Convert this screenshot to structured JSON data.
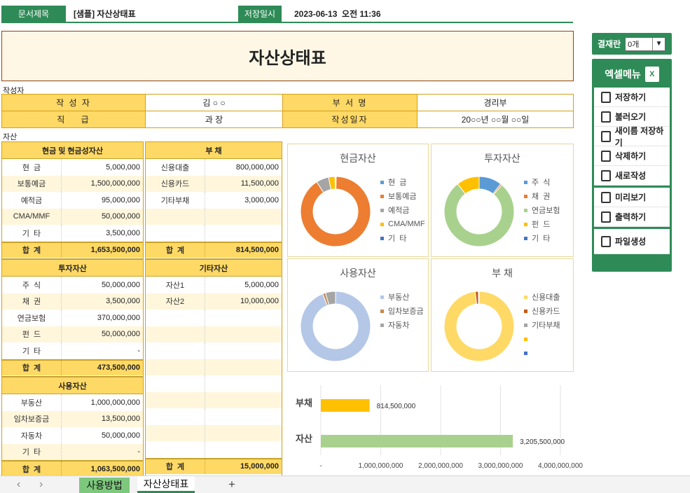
{
  "header": {
    "doc_title_label": "문서제목",
    "doc_title": "[샘플] 자산상태표",
    "saved_label": "저장일시",
    "saved_at": "2023-06-13  오전 11:36"
  },
  "title": "자산상태표",
  "author_section": "작성자",
  "asset_section": "자산",
  "info": {
    "author_k": "작 성 자",
    "author_v": "김 ○ ○",
    "dept_k": "부 서 명",
    "dept_v": "경리부",
    "rank_k": "직    급",
    "rank_v": "과 장",
    "date_k": "작성일자",
    "date_v": "20○○년 ○○월 ○○일"
  },
  "cash": {
    "title": "현금 및 현금성자산",
    "rows": [
      [
        "현  금",
        "5,000,000"
      ],
      [
        "보통예금",
        "1,500,000,000"
      ],
      [
        "예적금",
        "95,000,000"
      ],
      [
        "CMA/MMF",
        "50,000,000"
      ],
      [
        "기  타",
        "3,500,000"
      ]
    ],
    "sum_label": "합  계",
    "sum": "1,653,500,000"
  },
  "debt": {
    "title": "부  채",
    "rows": [
      [
        "신용대출",
        "800,000,000"
      ],
      [
        "신용카드",
        "11,500,000"
      ],
      [
        "기타부채",
        "3,000,000"
      ],
      [
        "",
        ""
      ],
      [
        "",
        ""
      ]
    ],
    "sum_label": "합  계",
    "sum": "814,500,000"
  },
  "invest": {
    "title": "투자자산",
    "rows": [
      [
        "주  식",
        "50,000,000"
      ],
      [
        "채  권",
        "3,500,000"
      ],
      [
        "연금보험",
        "370,000,000"
      ],
      [
        "펀  드",
        "50,000,000"
      ],
      [
        "기  타",
        "-"
      ]
    ],
    "sum_label": "합  계",
    "sum": "473,500,000"
  },
  "other": {
    "title": "기타자산",
    "rows": [
      [
        "자산1",
        "5,000,000"
      ],
      [
        "자산2",
        "10,000,000"
      ],
      [
        "",
        ""
      ],
      [
        "",
        ""
      ],
      [
        "",
        ""
      ],
      [
        "",
        ""
      ],
      [
        "",
        ""
      ],
      [
        "",
        ""
      ],
      [
        "",
        ""
      ],
      [
        "",
        ""
      ],
      [
        "",
        ""
      ]
    ],
    "sum_label": "합  계",
    "sum": "15,000,000"
  },
  "use": {
    "title": "사용자산",
    "rows": [
      [
        "부동산",
        "1,000,000,000"
      ],
      [
        "임차보증금",
        "13,500,000"
      ],
      [
        "자동차",
        "50,000,000"
      ],
      [
        "기  타",
        "-"
      ]
    ],
    "sum_label": "합  계",
    "sum": "1,063,500,000"
  },
  "donuts": [
    {
      "title": "현금자산",
      "legend": [
        "현  금",
        "보통예금",
        "예적금",
        "CMA/MMF",
        "기  타"
      ],
      "colors": [
        "#5b9bd5",
        "#ed7d31",
        "#a5a5a5",
        "#ffc000",
        "#4472c4"
      ],
      "values": [
        5000000,
        1500000000,
        95000000,
        50000000,
        3500000
      ]
    },
    {
      "title": "투자자산",
      "legend": [
        "주  식",
        "채  권",
        "연금보험",
        "펀  드",
        "기  타"
      ],
      "colors": [
        "#5b9bd5",
        "#ed7d31",
        "#a9d18e",
        "#ffc000",
        "#4472c4"
      ],
      "values": [
        50000000,
        3500000,
        370000000,
        50000000,
        0
      ]
    },
    {
      "title": "사용자산",
      "legend": [
        "부동산",
        "임차보증금",
        "자동차"
      ],
      "colors": [
        "#b4c7e7",
        "#c5894f",
        "#a5a5a5"
      ],
      "values": [
        1000000000,
        13500000,
        50000000
      ]
    },
    {
      "title": "부  채",
      "legend": [
        "신용대출",
        "신용카드",
        "기타부채",
        "",
        ""
      ],
      "colors": [
        "#ffd966",
        "#c55a11",
        "#a5a5a5",
        "#ffc000",
        "#4472c4"
      ],
      "values": [
        800000000,
        11500000,
        3000000,
        0,
        0
      ]
    }
  ],
  "chart_data": {
    "type": "bar",
    "categories": [
      "부채",
      "자산"
    ],
    "values": [
      814500000,
      3205500000
    ],
    "value_labels": [
      "814,500,000",
      "3,205,500,000"
    ],
    "colors": [
      "#ffc000",
      "#a9d18e"
    ],
    "xticks": [
      "-",
      "1,000,000,000",
      "2,000,000,000",
      "3,000,000,000",
      "4,000,000,000"
    ],
    "xlim": [
      0,
      4000000000
    ]
  },
  "side": {
    "approval_label": "결재란",
    "approval_value": "0개",
    "excel_menu": "엑셀메뉴",
    "buttons": [
      "저장하기",
      "불러오기",
      "새이름 저장하기",
      "삭제하기",
      "새로작성"
    ],
    "buttons2": [
      "미리보기",
      "출력하기"
    ],
    "buttons3": [
      "파일생성"
    ]
  },
  "tabs": {
    "prev": "‹",
    "next": "›",
    "items": [
      "사용방법",
      "자산상태표"
    ],
    "add": "+"
  }
}
